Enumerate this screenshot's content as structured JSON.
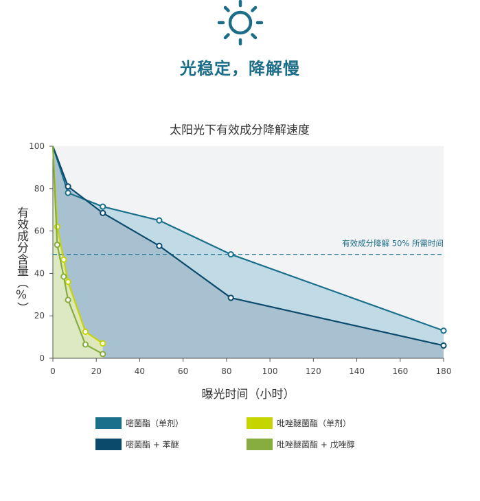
{
  "headline": "光稳定，降解慢",
  "chart_data": {
    "type": "line",
    "title": "太阳光下有效成分降解速度",
    "xlabel": "曝光时间（小时）",
    "ylabel": "有效成分含量（%）",
    "xlim": [
      0,
      180
    ],
    "ylim": [
      0,
      100
    ],
    "xticks": [
      0,
      20,
      40,
      60,
      80,
      100,
      120,
      140,
      160,
      180
    ],
    "yticks": [
      0,
      20,
      40,
      60,
      80,
      100
    ],
    "grid": false,
    "legend_position": "bottom",
    "reference_line": {
      "y": 49,
      "label": "有效成分降解 50% 所需时间"
    },
    "series": [
      {
        "name": "嘧菌酯（单剂）",
        "color": "#1a6f8a",
        "fill": "#b8d6e3",
        "x": [
          0,
          7,
          23,
          49,
          82,
          180
        ],
        "y": [
          100,
          78,
          71.5,
          65,
          49,
          13
        ]
      },
      {
        "name": "嘧菌酯 + 苯醚",
        "color": "#0b4a6b",
        "fill": "#9fb8c9",
        "x": [
          0,
          7,
          23,
          49,
          82,
          180
        ],
        "y": [
          100,
          81,
          68.5,
          53,
          28.5,
          6
        ]
      },
      {
        "name": "吡唑醚菌酯（单剂）",
        "color": "#c6d400",
        "fill": "#e8efb8",
        "x": [
          0,
          2,
          5,
          7,
          15,
          23
        ],
        "y": [
          100,
          62,
          46.5,
          36,
          12.5,
          7
        ]
      },
      {
        "name": "吡唑醚菌酯 + 戊唑醇",
        "color": "#86ad3e",
        "fill": "#dde9c4",
        "x": [
          0,
          2,
          5,
          7,
          15,
          23
        ],
        "y": [
          100,
          53.5,
          38.5,
          27.5,
          6.5,
          2
        ]
      }
    ]
  }
}
